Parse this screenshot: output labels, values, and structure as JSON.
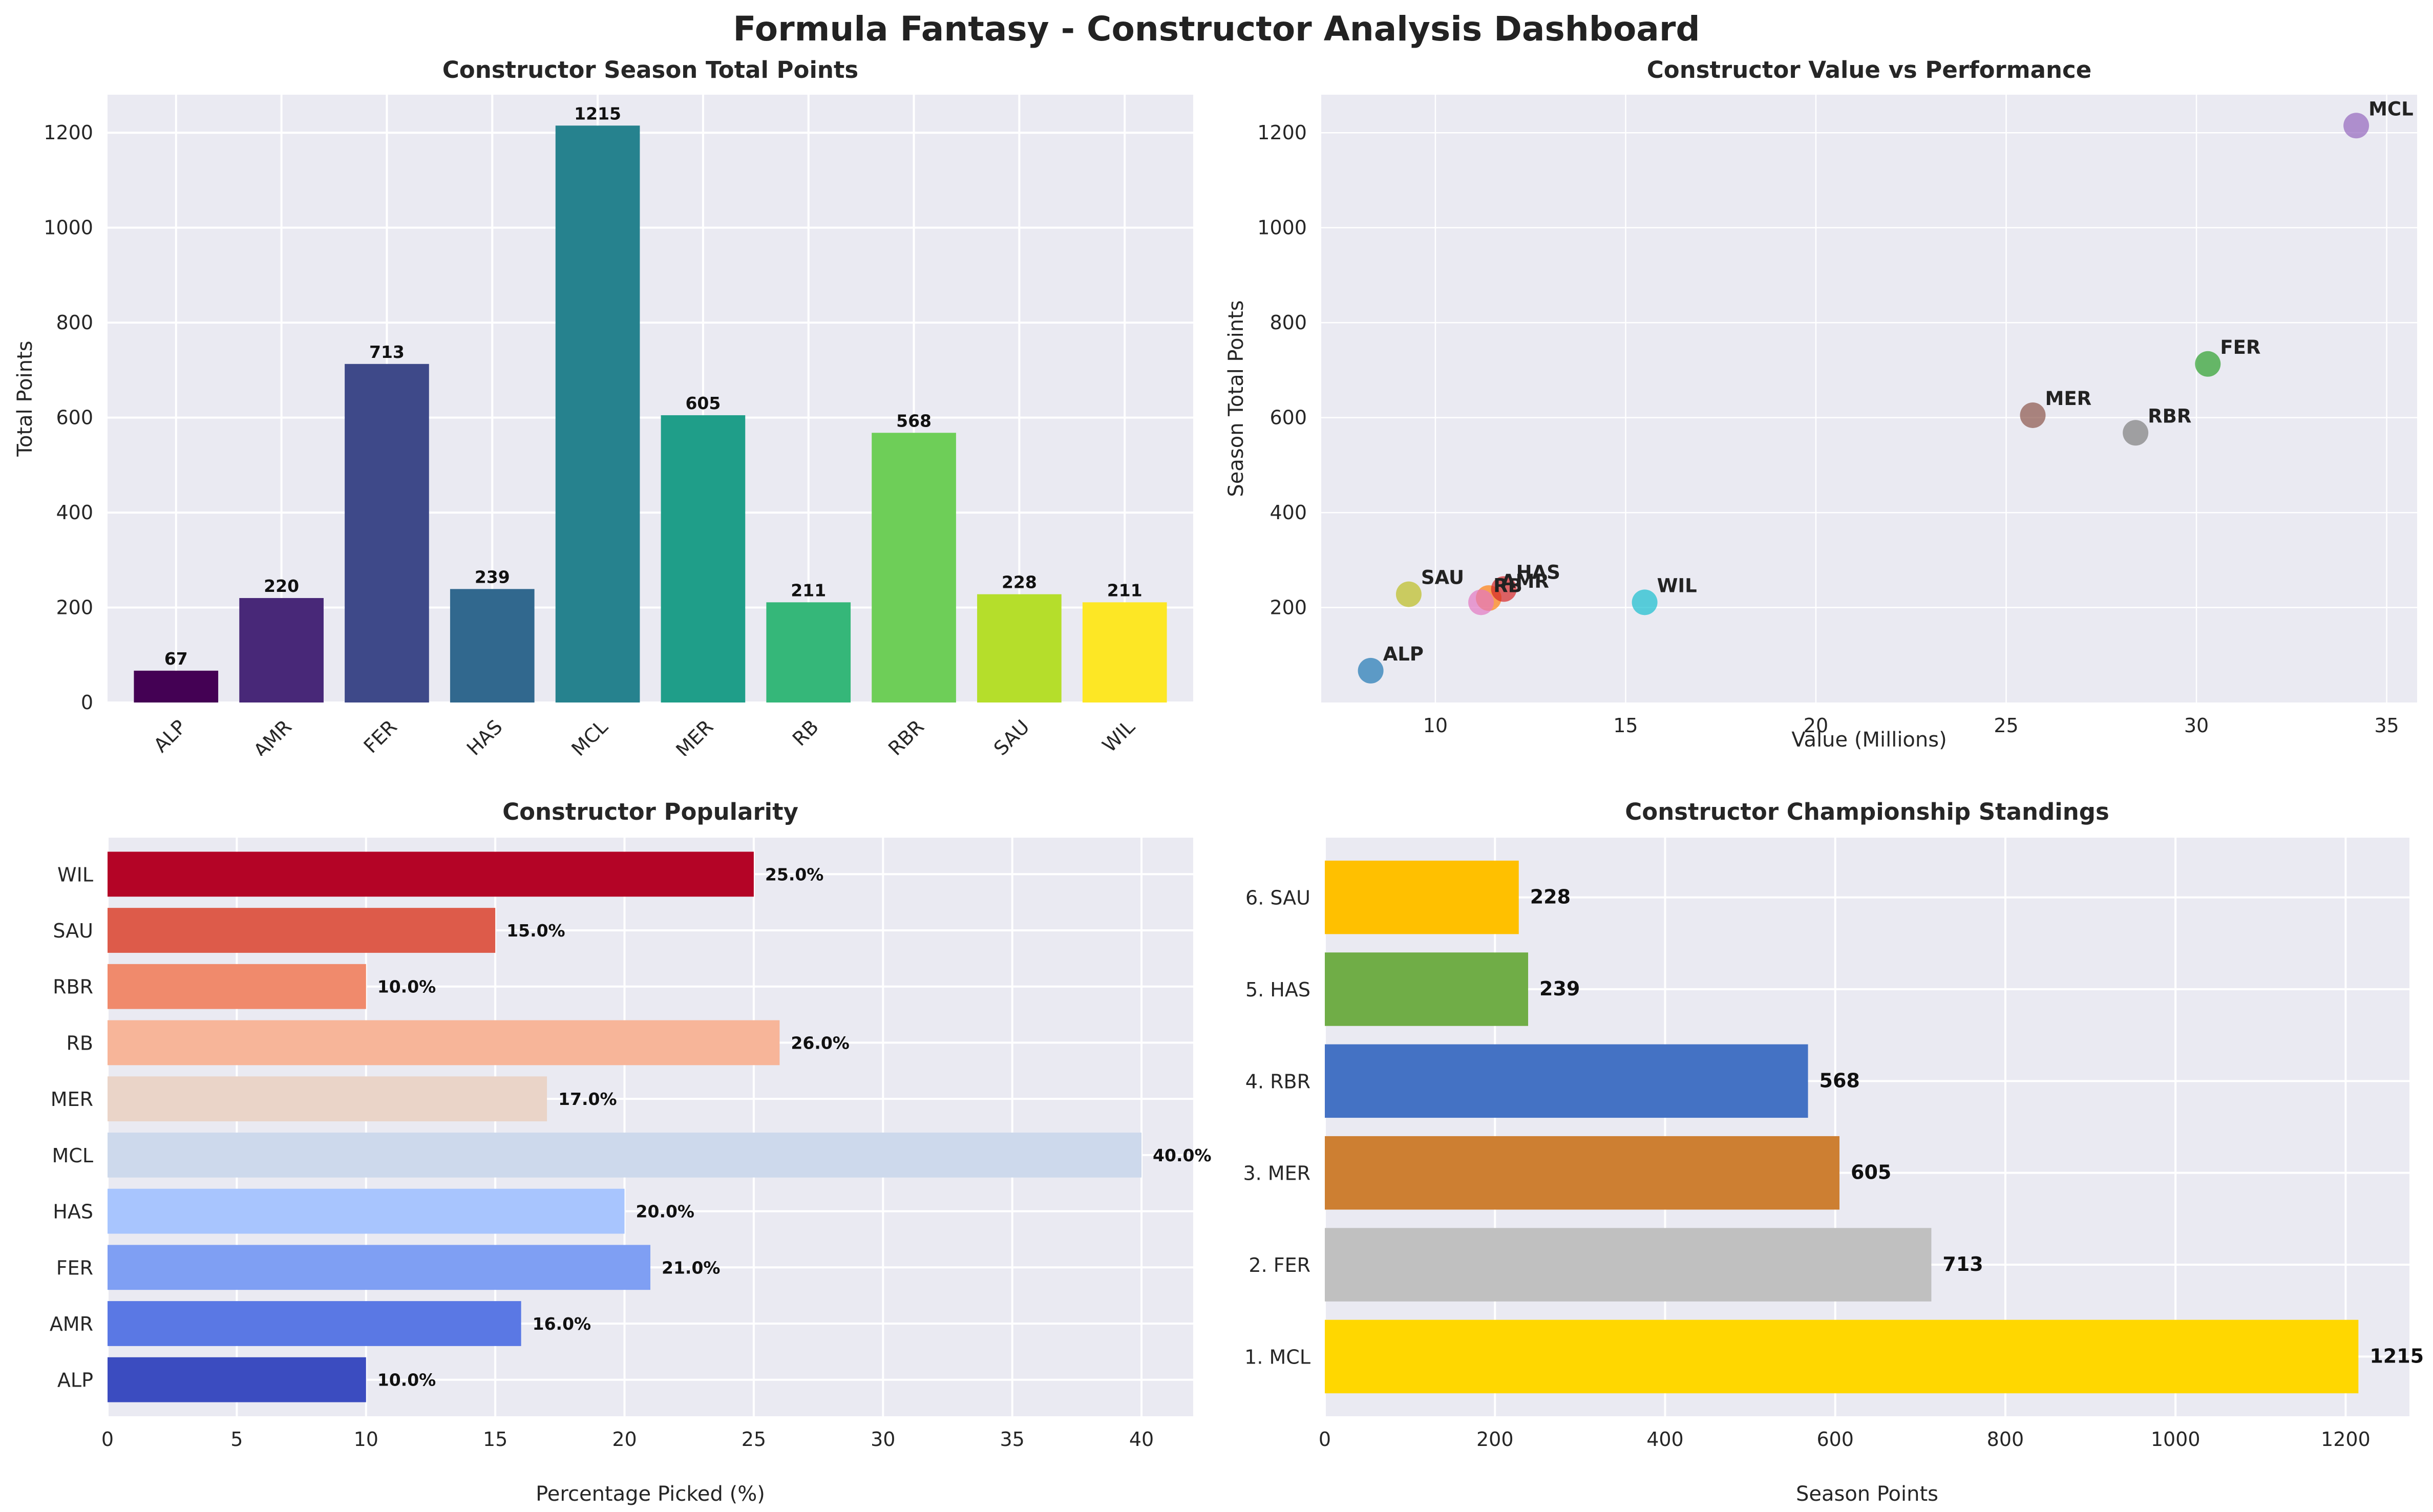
{
  "title": "Formula Fantasy - Constructor Analysis Dashboard",
  "chart_data": [
    {
      "type": "bar",
      "title": "Constructor Season Total Points",
      "xlabel": "",
      "ylabel": "Total Points",
      "categories": [
        "ALP",
        "AMR",
        "FER",
        "HAS",
        "MCL",
        "MER",
        "RB",
        "RBR",
        "SAU",
        "WIL"
      ],
      "values": [
        67,
        220,
        713,
        239,
        1215,
        605,
        211,
        568,
        228,
        211
      ],
      "ylim": [
        0,
        1280
      ],
      "yticks": [
        "0",
        "200",
        "400",
        "600",
        "800",
        "1000",
        "1200"
      ],
      "colors": [
        "#440154",
        "#482878",
        "#3e4989",
        "#31688e",
        "#26828e",
        "#1f9e89",
        "#35b779",
        "#6ece58",
        "#b5de2b",
        "#fde725"
      ],
      "grid": true
    },
    {
      "type": "scatter",
      "title": "Constructor Value vs Performance",
      "xlabel": "Value (Millions)",
      "ylabel": "Season Total Points",
      "xlim": [
        7.0,
        35.8
      ],
      "ylim": [
        0,
        1280
      ],
      "xticks": [
        "10",
        "15",
        "20",
        "25",
        "30",
        "35"
      ],
      "yticks": [
        "200",
        "400",
        "600",
        "800",
        "1000",
        "1200"
      ],
      "points": [
        {
          "label": "ALP",
          "x": 8.3,
          "y": 67,
          "color": "#1f77b4"
        },
        {
          "label": "AMR",
          "x": 11.4,
          "y": 220,
          "color": "#ff7f0e"
        },
        {
          "label": "FER",
          "x": 30.3,
          "y": 713,
          "color": "#2ca02c"
        },
        {
          "label": "HAS",
          "x": 11.8,
          "y": 239,
          "color": "#d62728"
        },
        {
          "label": "MCL",
          "x": 34.2,
          "y": 1215,
          "color": "#9467bd"
        },
        {
          "label": "MER",
          "x": 25.7,
          "y": 605,
          "color": "#8c564b"
        },
        {
          "label": "RB",
          "x": 11.2,
          "y": 211,
          "color": "#e377c2"
        },
        {
          "label": "RBR",
          "x": 28.4,
          "y": 568,
          "color": "#7f7f7f"
        },
        {
          "label": "SAU",
          "x": 9.3,
          "y": 228,
          "color": "#bcbd22"
        },
        {
          "label": "WIL",
          "x": 15.5,
          "y": 211,
          "color": "#17becf"
        }
      ],
      "grid": true
    },
    {
      "type": "bar",
      "orientation": "horizontal",
      "title": "Constructor Popularity",
      "xlabel": "Percentage Picked (%)",
      "ylabel": "",
      "categories": [
        "ALP",
        "AMR",
        "FER",
        "HAS",
        "MCL",
        "MER",
        "RB",
        "RBR",
        "SAU",
        "WIL"
      ],
      "values": [
        10.0,
        16.0,
        21.0,
        20.0,
        40.0,
        17.0,
        26.0,
        10.0,
        15.0,
        25.0
      ],
      "value_labels": [
        "10.0%",
        "16.0%",
        "21.0%",
        "20.0%",
        "40.0%",
        "17.0%",
        "26.0%",
        "10.0%",
        "15.0%",
        "25.0%"
      ],
      "xlim": [
        0,
        42
      ],
      "xticks": [
        "0",
        "5",
        "10",
        "15",
        "20",
        "25",
        "30",
        "35",
        "40"
      ],
      "colors": [
        "#3b4cc0",
        "#5a78e4",
        "#7f9ff3",
        "#a8c5fe",
        "#cdd9ec",
        "#ead4c8",
        "#f7b599",
        "#f08a6c",
        "#dd5b4a",
        "#b40426"
      ],
      "grid": true
    },
    {
      "type": "bar",
      "orientation": "horizontal",
      "title": "Constructor Championship Standings",
      "xlabel": "Season Points",
      "ylabel": "",
      "categories": [
        "1. MCL",
        "2. FER",
        "3. MER",
        "4. RBR",
        "5. HAS",
        "6. SAU"
      ],
      "values": [
        1215,
        713,
        605,
        568,
        239,
        228
      ],
      "xlim": [
        0,
        1275
      ],
      "xticks": [
        "0",
        "200",
        "400",
        "600",
        "800",
        "1000",
        "1200"
      ],
      "colors": [
        "#ffd700",
        "#c0c0c0",
        "#cd7f32",
        "#4472c4",
        "#70ad47",
        "#ffc000"
      ],
      "grid": true
    }
  ]
}
